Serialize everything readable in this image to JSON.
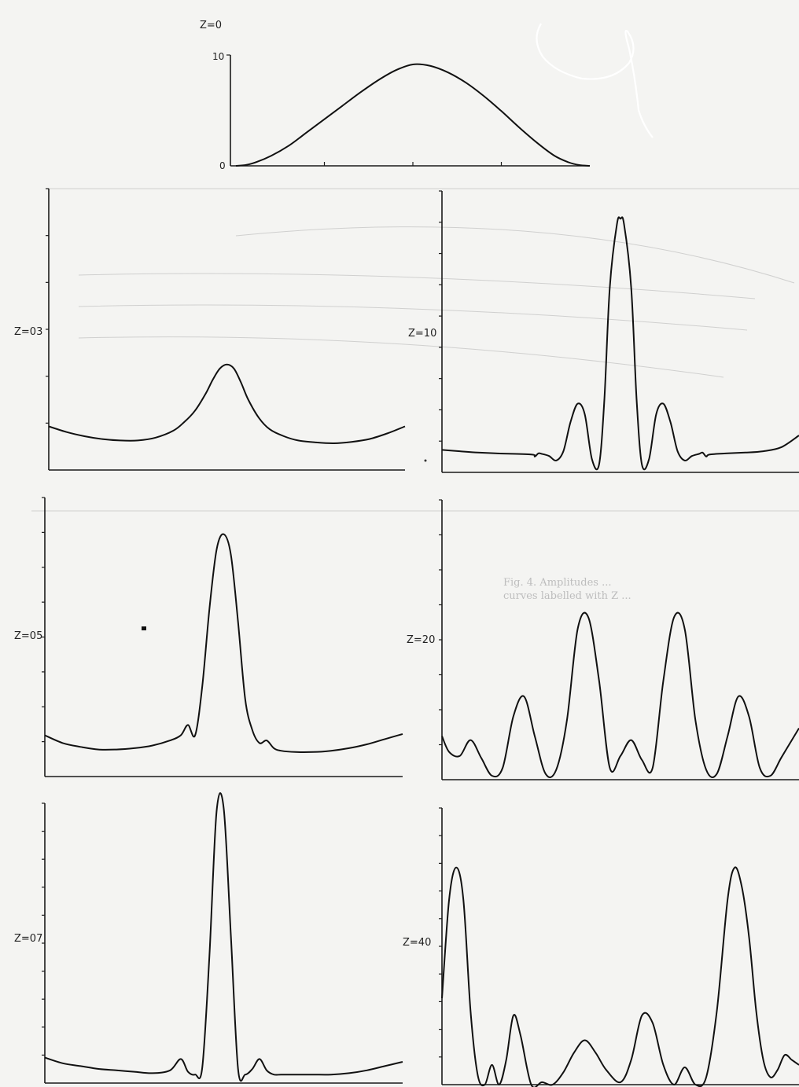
{
  "chart_data": [
    {
      "id": "z0",
      "type": "line",
      "label": "Z=0",
      "yticks": [
        "10",
        "0"
      ],
      "ylim": [
        0,
        10
      ],
      "xlim": [
        0,
        1
      ],
      "xticks_count": 4,
      "x": [
        0,
        0.03,
        0.06,
        0.1,
        0.15,
        0.2,
        0.25,
        0.3,
        0.35,
        0.4,
        0.45,
        0.5,
        0.55,
        0.6,
        0.65,
        0.7,
        0.75,
        0.8,
        0.85,
        0.9,
        0.94,
        0.97,
        1.0
      ],
      "y": [
        0.0,
        0.1,
        0.4,
        1.0,
        2.0,
        3.3,
        4.6,
        5.9,
        7.2,
        8.4,
        9.4,
        10.0,
        9.85,
        9.2,
        8.2,
        6.9,
        5.4,
        3.8,
        2.3,
        1.0,
        0.35,
        0.08,
        0.0
      ]
    },
    {
      "id": "z03",
      "type": "line",
      "label": "Z=03",
      "ylim": [
        0,
        10
      ],
      "xlim": [
        0,
        1
      ],
      "yticks_count": 6,
      "x": [
        0,
        0.05,
        0.1,
        0.15,
        0.2,
        0.25,
        0.3,
        0.35,
        0.38,
        0.41,
        0.44,
        0.46,
        0.48,
        0.5,
        0.52,
        0.54,
        0.56,
        0.59,
        0.62,
        0.66,
        0.7,
        0.75,
        0.8,
        0.85,
        0.9,
        0.95,
        1.0
      ],
      "y": [
        1.55,
        1.35,
        1.2,
        1.1,
        1.05,
        1.05,
        1.15,
        1.4,
        1.7,
        2.1,
        2.7,
        3.2,
        3.6,
        3.75,
        3.6,
        3.1,
        2.5,
        1.85,
        1.45,
        1.2,
        1.05,
        0.98,
        0.95,
        1.0,
        1.1,
        1.3,
        1.55
      ]
    },
    {
      "id": "z10",
      "type": "line",
      "label": "Z=10",
      "ylim": [
        0,
        10
      ],
      "xlim": [
        0,
        1
      ],
      "yticks_count": 9,
      "x": [
        0,
        0.05,
        0.1,
        0.15,
        0.25,
        0.26,
        0.27,
        0.28,
        0.3,
        0.32,
        0.34,
        0.36,
        0.38,
        0.4,
        0.42,
        0.44,
        0.455,
        0.47,
        0.49,
        0.5,
        0.51,
        0.53,
        0.545,
        0.56,
        0.58,
        0.6,
        0.62,
        0.64,
        0.66,
        0.68,
        0.7,
        0.72,
        0.73,
        0.74,
        0.75,
        0.8,
        0.85,
        0.9,
        0.95,
        1.0
      ],
      "y": [
        0.85,
        0.8,
        0.75,
        0.72,
        0.68,
        0.6,
        0.72,
        0.7,
        0.62,
        0.45,
        0.8,
        1.9,
        2.6,
        2.2,
        0.5,
        0.3,
        2.8,
        7.0,
        9.4,
        9.6,
        9.4,
        7.0,
        2.8,
        0.3,
        0.5,
        2.2,
        2.6,
        1.9,
        0.8,
        0.45,
        0.62,
        0.7,
        0.75,
        0.6,
        0.68,
        0.72,
        0.75,
        0.8,
        0.95,
        1.4
      ]
    },
    {
      "id": "z05",
      "type": "line",
      "label": "Z=05",
      "ylim": [
        0,
        10
      ],
      "xlim": [
        0,
        1
      ],
      "yticks_count": 8,
      "x": [
        0,
        0.05,
        0.1,
        0.15,
        0.2,
        0.25,
        0.3,
        0.35,
        0.38,
        0.4,
        0.42,
        0.44,
        0.46,
        0.48,
        0.5,
        0.52,
        0.54,
        0.56,
        0.58,
        0.6,
        0.62,
        0.64,
        0.66,
        0.7,
        0.75,
        0.8,
        0.85,
        0.9,
        0.95,
        1.0
      ],
      "y": [
        1.6,
        1.3,
        1.15,
        1.05,
        1.05,
        1.1,
        1.2,
        1.4,
        1.6,
        2.0,
        1.6,
        3.5,
        6.5,
        8.8,
        9.4,
        8.6,
        6.0,
        3.0,
        1.8,
        1.3,
        1.4,
        1.1,
        1.0,
        0.95,
        0.95,
        1.0,
        1.1,
        1.25,
        1.45,
        1.65
      ]
    },
    {
      "id": "z20",
      "type": "line",
      "label": "Z=20",
      "ylim": [
        0,
        10
      ],
      "xlim": [
        0,
        1
      ],
      "yticks_count": 8,
      "x": [
        0,
        0.02,
        0.05,
        0.08,
        0.11,
        0.14,
        0.17,
        0.2,
        0.23,
        0.26,
        0.29,
        0.32,
        0.35,
        0.38,
        0.41,
        0.44,
        0.47,
        0.5,
        0.53,
        0.56,
        0.59,
        0.62,
        0.65,
        0.68,
        0.71,
        0.74,
        0.77,
        0.8,
        0.83,
        0.86,
        0.89,
        0.92,
        0.95,
        0.98,
        1.0
      ],
      "y": [
        2.2,
        1.4,
        1.2,
        2.0,
        1.1,
        0.2,
        0.6,
        3.2,
        4.2,
        2.2,
        0.3,
        0.5,
        3.0,
        7.6,
        8.2,
        5.0,
        0.6,
        1.2,
        2.0,
        1.0,
        0.6,
        5.0,
        8.2,
        7.6,
        3.0,
        0.5,
        0.3,
        2.2,
        4.2,
        3.2,
        0.6,
        0.2,
        1.1,
        2.0,
        2.6
      ]
    },
    {
      "id": "z07",
      "type": "line",
      "label": "Z=07",
      "ylim": [
        0,
        10
      ],
      "xlim": [
        0,
        1
      ],
      "yticks_count": 10,
      "x": [
        0,
        0.05,
        0.1,
        0.15,
        0.2,
        0.25,
        0.3,
        0.35,
        0.38,
        0.4,
        0.42,
        0.44,
        0.46,
        0.48,
        0.5,
        0.52,
        0.54,
        0.56,
        0.58,
        0.6,
        0.62,
        0.64,
        0.66,
        0.7,
        0.75,
        0.8,
        0.85,
        0.9,
        0.95,
        1.0
      ],
      "y": [
        0.9,
        0.7,
        0.6,
        0.5,
        0.45,
        0.4,
        0.35,
        0.45,
        0.85,
        0.4,
        0.3,
        0.55,
        4.5,
        9.6,
        9.7,
        5.2,
        0.5,
        0.3,
        0.5,
        0.85,
        0.45,
        0.3,
        0.3,
        0.3,
        0.3,
        0.3,
        0.35,
        0.45,
        0.6,
        0.75
      ]
    },
    {
      "id": "z40",
      "type": "line",
      "label": "Z=40",
      "ylim": [
        0,
        10
      ],
      "xlim": [
        0,
        1
      ],
      "yticks_count": 10,
      "x": [
        0,
        0.02,
        0.04,
        0.06,
        0.08,
        0.1,
        0.12,
        0.14,
        0.16,
        0.18,
        0.2,
        0.22,
        0.25,
        0.28,
        0.31,
        0.34,
        0.37,
        0.4,
        0.43,
        0.46,
        0.5,
        0.53,
        0.56,
        0.59,
        0.62,
        0.65,
        0.68,
        0.71,
        0.74,
        0.77,
        0.8,
        0.82,
        0.84,
        0.86,
        0.88,
        0.9,
        0.92,
        0.94,
        0.96,
        0.98,
        1.0
      ],
      "y": [
        3.5,
        7.5,
        8.8,
        7.5,
        3.0,
        0.4,
        0.0,
        0.8,
        0.0,
        1.0,
        2.8,
        2.0,
        0.0,
        0.1,
        0.0,
        0.5,
        1.3,
        1.8,
        1.3,
        0.6,
        0.1,
        1.0,
        2.8,
        2.5,
        0.8,
        0.0,
        0.7,
        0.0,
        0.3,
        3.0,
        7.5,
        8.8,
        8.0,
        6.0,
        3.0,
        1.0,
        0.3,
        0.6,
        1.2,
        1.0,
        0.8
      ]
    }
  ],
  "background_text": {
    "line1": "Fig. 4.  Amplitudes ...",
    "line2": "curves labelled with Z ..."
  }
}
